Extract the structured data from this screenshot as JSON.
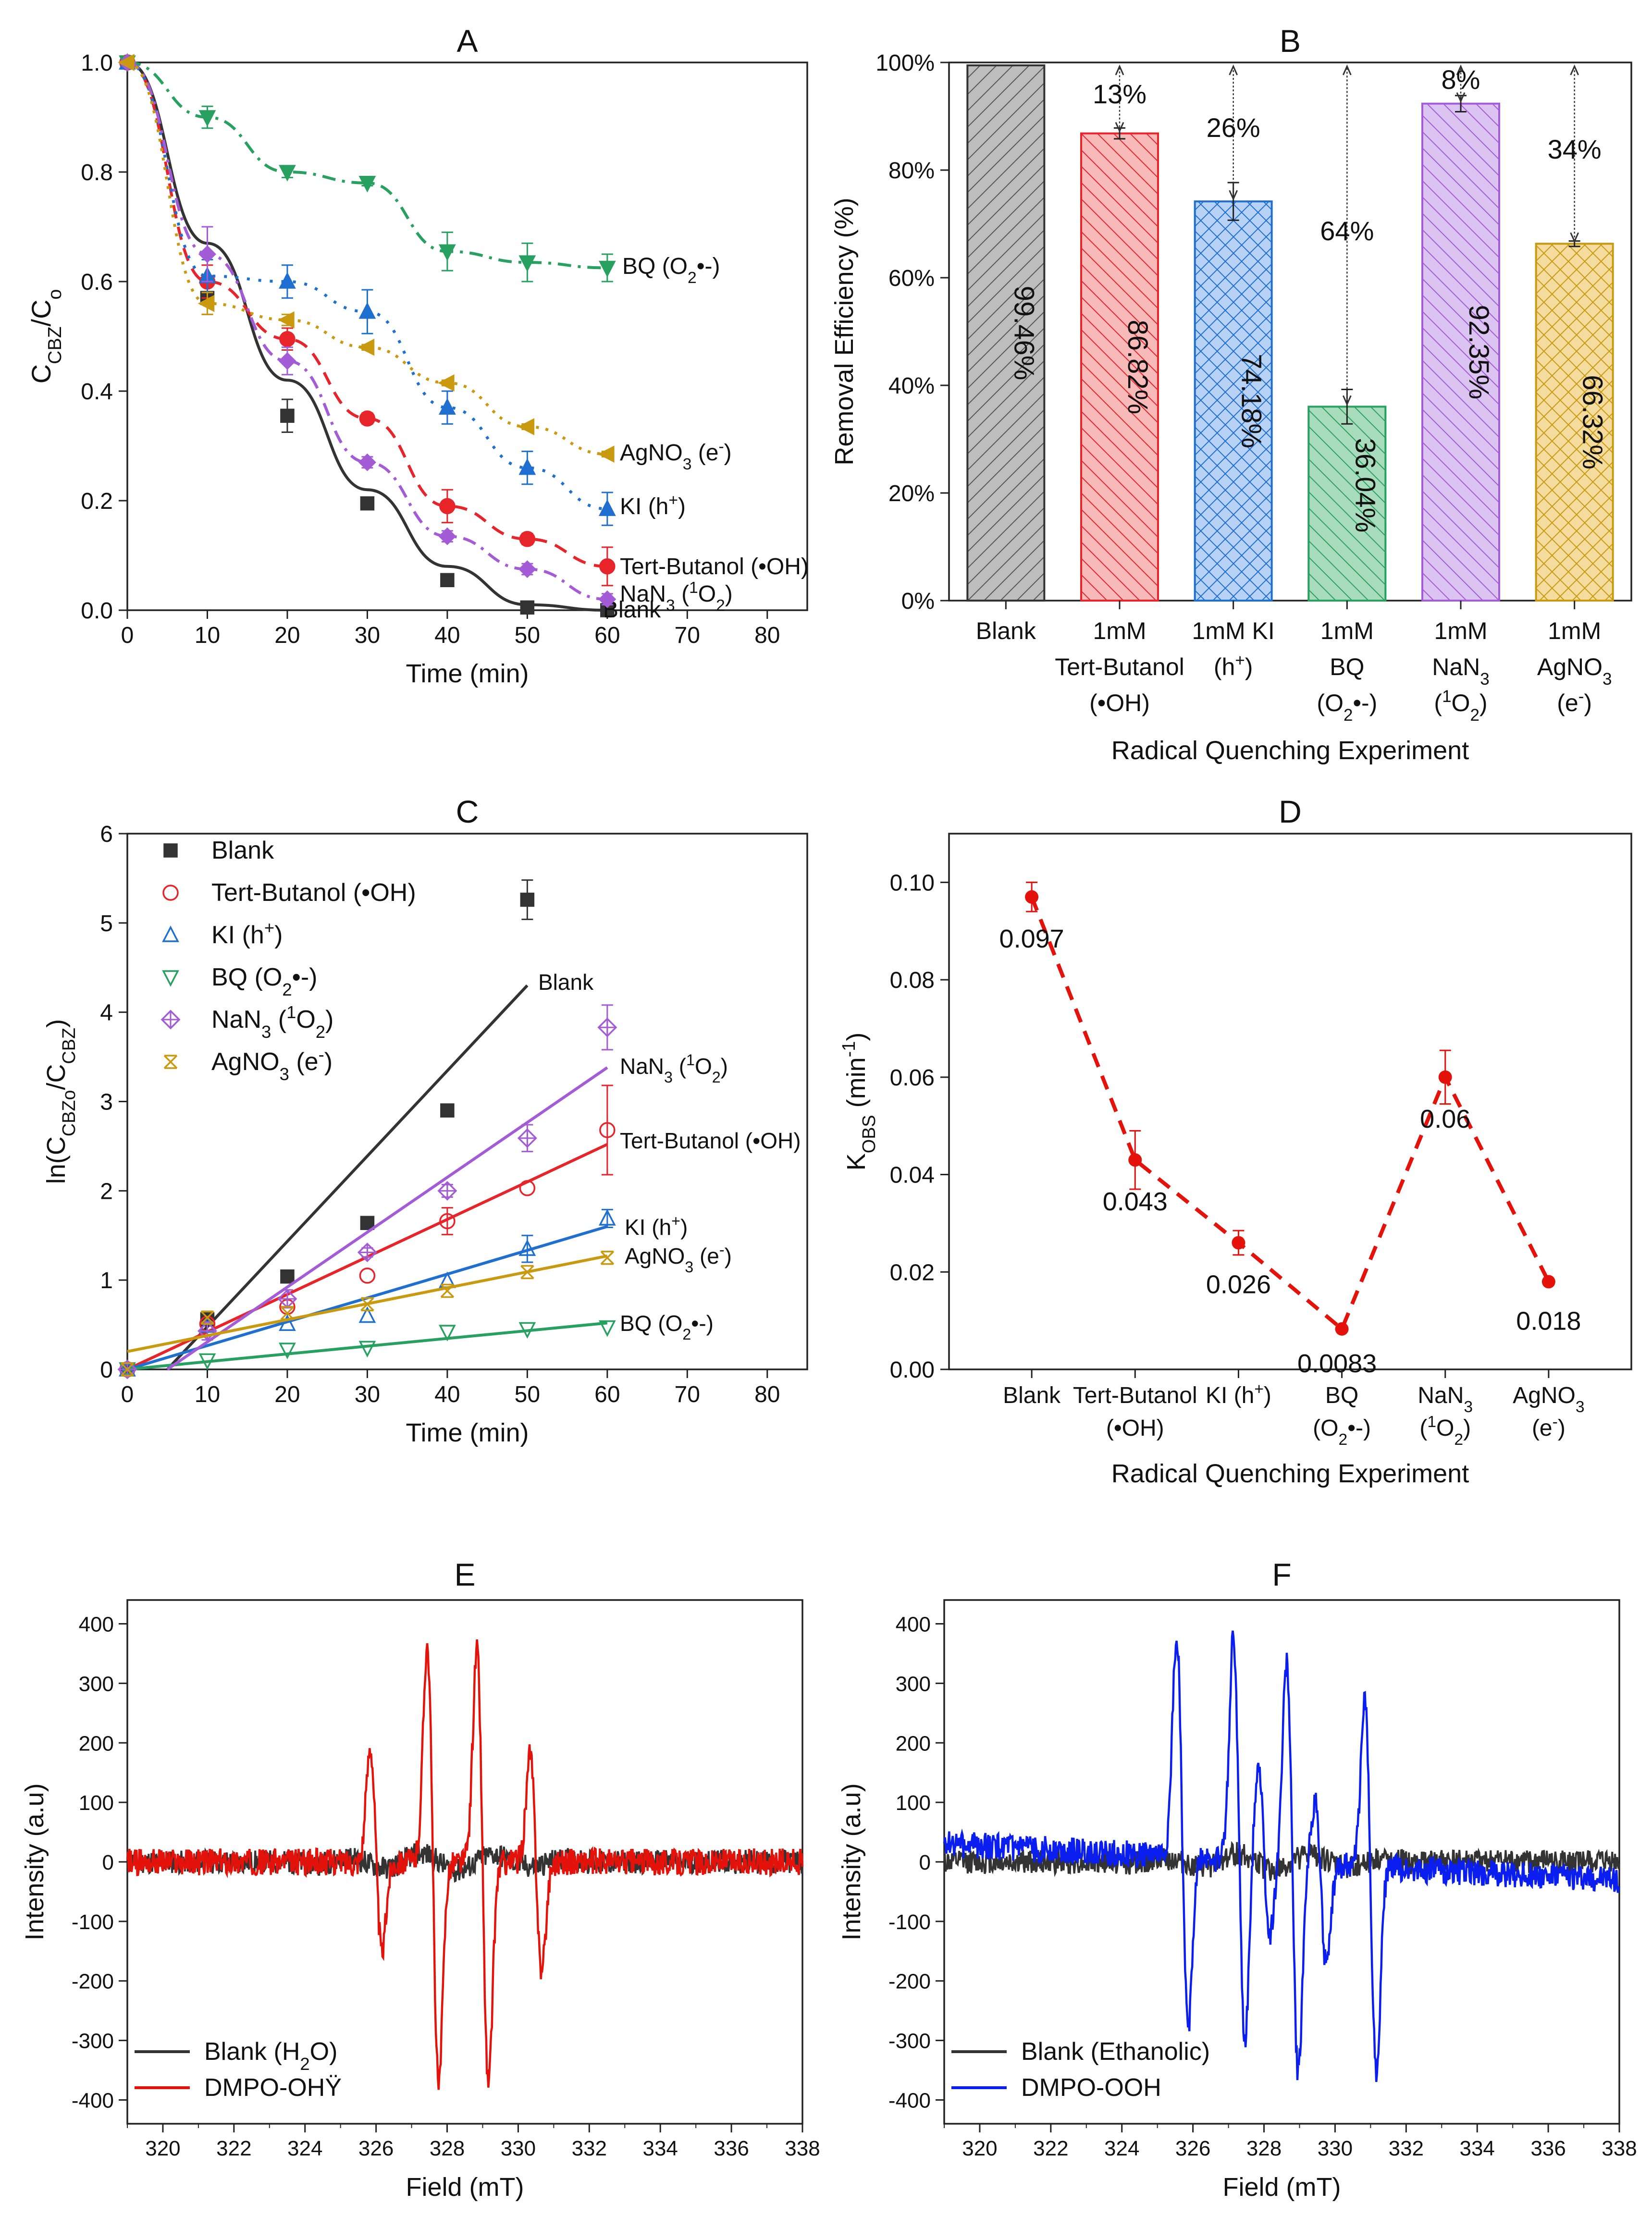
{
  "colors": {
    "blank": "#333333",
    "tbu": "#e8242b",
    "ki": "#1f6fd1",
    "bq": "#27a060",
    "nan3": "#a35bd6",
    "agno3": "#c99a10",
    "red": "#e3120b",
    "blue": "#0b1ef0",
    "bq_fill": "#a9dcbc",
    "tbu_fill": "#f8b9b9",
    "ki_fill": "#b7d2f5",
    "nan3_fill": "#dcc4f2",
    "agno3_fill": "#f4dc9e",
    "blank_fill": "#bdbdbd"
  },
  "chart_data": [
    {
      "id": "A",
      "type": "line",
      "title": "A",
      "xlabel": "Time (min)",
      "ylabel_main": "C",
      "ylabel_sub": "CBZ",
      "ylabel_tail": "/C",
      "ylabel_sub2": "o",
      "xlim": [
        0,
        85
      ],
      "ylim": [
        0,
        1.0
      ],
      "xticks": [
        "0",
        "10",
        "20",
        "30",
        "40",
        "50",
        "60",
        "70",
        "80"
      ],
      "yticks": [
        "0.0",
        "0.2",
        "0.4",
        "0.6",
        "0.8",
        "1.0"
      ],
      "x": [
        0,
        10,
        20,
        30,
        40,
        50,
        60
      ],
      "series": [
        {
          "key": "blank",
          "name": "Blank",
          "marker": "square",
          "values": [
            1.0,
            0.57,
            0.355,
            0.195,
            0.055,
            0.005,
            0.0
          ],
          "err": [
            0,
            0.03,
            0.03,
            0.01,
            0.01,
            0.005,
            0.005
          ],
          "fit": [
            1.0,
            0.67,
            0.42,
            0.22,
            0.08,
            0.01,
            0.0
          ],
          "label": "Blank"
        },
        {
          "key": "tbu",
          "name": "Tert-Butanol (•OH)",
          "marker": "circle",
          "values": [
            1.0,
            0.6,
            0.495,
            0.35,
            0.19,
            0.13,
            0.08
          ],
          "err": [
            0,
            0.03,
            0.02,
            0.01,
            0.03,
            0.01,
            0.035
          ],
          "label": "Tert-Butanol (•OH)"
        },
        {
          "key": "ki",
          "name": "KI (h+)",
          "marker": "triangle-up",
          "values": [
            1.0,
            0.61,
            0.6,
            0.545,
            0.37,
            0.26,
            0.185
          ],
          "err": [
            0,
            0.03,
            0.03,
            0.04,
            0.03,
            0.03,
            0.03
          ],
          "label": "KI (h+)"
        },
        {
          "key": "bq",
          "name": "BQ (O2•-)",
          "marker": "triangle-down",
          "values": [
            1.0,
            0.9,
            0.8,
            0.78,
            0.655,
            0.635,
            0.625
          ],
          "err": [
            0,
            0.02,
            0.01,
            0.005,
            0.035,
            0.035,
            0.025
          ],
          "label": "BQ (O2•-)"
        },
        {
          "key": "nan3",
          "name": "NaN3 (1O2)",
          "marker": "diamond",
          "values": [
            1.0,
            0.65,
            0.455,
            0.27,
            0.135,
            0.075,
            0.02
          ],
          "err": [
            0,
            0.05,
            0.025,
            0.01,
            0.01,
            0.01,
            0.01
          ],
          "label": "NaN3 (1O2)"
        },
        {
          "key": "agno3",
          "name": "AgNO3 (e-)",
          "marker": "triangle-left",
          "values": [
            1.0,
            0.56,
            0.53,
            0.48,
            0.415,
            0.335,
            0.285
          ],
          "err": [
            0,
            0.02,
            0.01,
            0.005,
            0.005,
            0.005,
            0.005
          ],
          "label": "AgNO3 (e-)"
        }
      ]
    },
    {
      "id": "B",
      "type": "bar",
      "title": "B",
      "xlabel": "Radical Quenching Experiment",
      "ylabel": "Removal Efficiency (%)",
      "ylim": [
        0,
        100
      ],
      "yticks": [
        "0%",
        "20%",
        "40%",
        "60%",
        "80%",
        "100%"
      ],
      "categories": [
        [
          "Blank"
        ],
        [
          "1mM",
          "Tert-Butanol",
          "(•OH)"
        ],
        [
          "1mM KI",
          "(h+)"
        ],
        [
          "1mM",
          "BQ",
          "(O2•-)"
        ],
        [
          "1mM",
          "NaN3",
          "(1O2)"
        ],
        [
          "1mM",
          "AgNO3",
          "(e-)"
        ]
      ],
      "values": [
        99.46,
        86.82,
        74.18,
        36.04,
        92.35,
        66.32
      ],
      "err": [
        0,
        1.0,
        3.5,
        3.2,
        1.5,
        0.5
      ],
      "bar_labels": [
        "99.46%",
        "86.82%",
        "74.18%",
        "36.04%",
        "92.35%",
        "66.32%"
      ],
      "difference_labels": [
        "13%",
        "26%",
        "64%",
        "8%",
        "34%"
      ]
    },
    {
      "id": "C",
      "type": "scatter",
      "title": "C",
      "xlabel": "Time (min)",
      "ylabel": "ln(CCBZo/CCBZ)",
      "xlim": [
        0,
        85
      ],
      "ylim": [
        0,
        6
      ],
      "xticks": [
        "0",
        "10",
        "20",
        "30",
        "40",
        "50",
        "60",
        "70",
        "80"
      ],
      "yticks": [
        "0",
        "1",
        "2",
        "3",
        "4",
        "5",
        "6"
      ],
      "x": [
        0,
        10,
        20,
        30,
        40,
        50,
        60
      ],
      "series": [
        {
          "key": "blank",
          "name": "Blank",
          "marker": "square-filled",
          "values": [
            0,
            0.56,
            1.04,
            1.64,
            2.9,
            5.26,
            null
          ],
          "err": [
            0,
            0,
            0,
            0,
            0,
            0.22,
            0
          ],
          "fit": [
            [
              5,
              0
            ],
            [
              50,
              4.3
            ]
          ],
          "label": "Blank"
        },
        {
          "key": "tbu",
          "name": "Tert-Butanol (•OH)",
          "marker": "circle-open",
          "values": [
            0,
            0.51,
            0.7,
            1.05,
            1.66,
            2.03,
            2.68
          ],
          "err": [
            0,
            0,
            0,
            0,
            0.15,
            0,
            0.5
          ],
          "fit": [
            [
              0,
              0
            ],
            [
              60,
              2.52
            ]
          ],
          "label": "Tert-Butanol (•OH)"
        },
        {
          "key": "ki",
          "name": "KI (h+)",
          "marker": "triangle-up-open",
          "values": [
            0,
            0.49,
            0.51,
            0.6,
            0.99,
            1.35,
            1.69
          ],
          "err": [
            0,
            0,
            0,
            0,
            0,
            0.15,
            0.1
          ],
          "fit": [
            [
              0,
              0
            ],
            [
              60,
              1.6
            ]
          ],
          "label": "KI (h+)"
        },
        {
          "key": "bq",
          "name": "BQ (O2•-)",
          "marker": "triangle-down-open",
          "values": [
            0,
            0.1,
            0.22,
            0.24,
            0.42,
            0.45,
            0.47
          ],
          "err": [
            0,
            0,
            0,
            0,
            0,
            0,
            0
          ],
          "fit": [
            [
              0,
              0
            ],
            [
              60,
              0.52
            ]
          ],
          "label": "BQ (O2•-)"
        },
        {
          "key": "nan3",
          "name": "NaN3 (1O2)",
          "marker": "diamond-cross",
          "values": [
            0,
            0.43,
            0.79,
            1.31,
            2.0,
            2.59,
            3.83
          ],
          "err": [
            0,
            0.1,
            0.1,
            0.05,
            0.07,
            0.15,
            0.25
          ],
          "fit": [
            [
              5,
              0
            ],
            [
              60,
              3.38
            ]
          ],
          "label": "NaN3 (1O2)"
        },
        {
          "key": "agno3",
          "name": "AgNO3 (e-)",
          "marker": "x-cross",
          "values": [
            0,
            0.58,
            0.63,
            0.73,
            0.88,
            1.09,
            1.25
          ],
          "err": [
            0,
            0,
            0,
            0,
            0,
            0,
            0
          ],
          "fit": [
            [
              0,
              0.2
            ],
            [
              60,
              1.27
            ]
          ],
          "label": "AgNO3 (e-)"
        }
      ],
      "legend": [
        "Blank",
        "Tert-Butanol (•OH)",
        "KI (h+)",
        "BQ (O2•-)",
        "NaN3 (1O2)",
        "AgNO3 (e-)"
      ]
    },
    {
      "id": "D",
      "type": "line",
      "title": "D",
      "xlabel": "Radical Quenching Experiment",
      "ylabel_main": "K",
      "ylabel_sub": "OBS",
      "ylabel_tail": " (min",
      "ylabel_sup": "-1",
      "ylabel_end": ")",
      "ylim": [
        0,
        0.11
      ],
      "yticks": [
        "0.00",
        "0.02",
        "0.04",
        "0.06",
        "0.08",
        "0.10"
      ],
      "categories": [
        [
          "Blank"
        ],
        [
          "Tert-Butanol",
          "(•OH)"
        ],
        [
          "KI (h+)"
        ],
        [
          "BQ",
          "(O2•-)"
        ],
        [
          "NaN3",
          "(1O2)"
        ],
        [
          "AgNO3",
          "(e-)"
        ]
      ],
      "values": [
        0.097,
        0.043,
        0.026,
        0.0083,
        0.06,
        0.018
      ],
      "err": [
        0.003,
        0.006,
        0.0025,
        0.0005,
        0.0055,
        0.0005
      ],
      "point_labels": [
        "0.097",
        "0.043",
        "0.026",
        "0.0083",
        "0.06",
        "0.018"
      ]
    },
    {
      "id": "E",
      "type": "line",
      "title": "E",
      "xlabel": "Field (mT)",
      "ylabel": "Intensity (a.u)",
      "xlim": [
        319,
        338
      ],
      "ylim": [
        -440,
        440
      ],
      "xticks": [
        "320",
        "322",
        "324",
        "326",
        "328",
        "330",
        "332",
        "334",
        "336",
        "338"
      ],
      "yticks": [
        "-400",
        "-300",
        "-200",
        "-100",
        "0",
        "100",
        "200",
        "300",
        "400"
      ],
      "series": [
        {
          "key": "blank",
          "name": "Blank (H2O)",
          "peaks": []
        },
        {
          "key": "red",
          "name": "DMPO-OHŸ",
          "peaks": [
            [
              326.0,
              200,
              -160
            ],
            [
              327.6,
              380,
              -390
            ],
            [
              329.0,
              370,
              -390
            ],
            [
              330.5,
              185,
              -190
            ]
          ]
        }
      ]
    },
    {
      "id": "F",
      "type": "line",
      "title": "F",
      "xlabel": "Field (mT)",
      "ylabel": "Intensity (a.u)",
      "xlim": [
        319,
        338
      ],
      "ylim": [
        -440,
        440
      ],
      "xticks": [
        "320",
        "322",
        "324",
        "326",
        "328",
        "330",
        "332",
        "334",
        "336",
        "338"
      ],
      "yticks": [
        "-400",
        "-300",
        "-200",
        "-100",
        "0",
        "100",
        "200",
        "300",
        "400"
      ],
      "series": [
        {
          "key": "blank",
          "name": "Blank (Ethanolic)",
          "peaks": []
        },
        {
          "key": "blue",
          "name": "DMPO-OOH",
          "peaks": [
            [
              325.7,
              385,
              -300
            ],
            [
              327.3,
              385,
              -320
            ],
            [
              328.0,
              170,
              -130
            ],
            [
              328.8,
              350,
              -370
            ],
            [
              329.6,
              110,
              -180
            ],
            [
              331.0,
              285,
              -350
            ]
          ]
        }
      ]
    }
  ]
}
